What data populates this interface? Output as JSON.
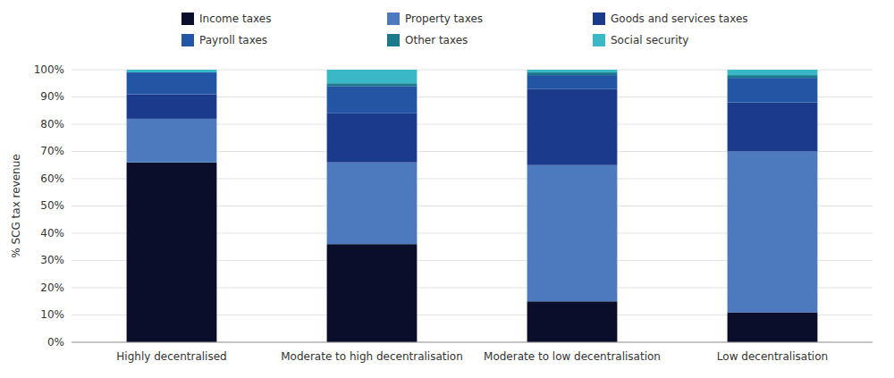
{
  "chart_data": {
    "type": "bar",
    "stacked": true,
    "categories": [
      "Highly decentralised",
      "Moderate to high decentralisation",
      "Moderate to low decentralisation",
      "Low decentralisation"
    ],
    "series": [
      {
        "name": "Income taxes",
        "color": "#0a0e2a",
        "values": [
          66,
          36,
          15,
          11
        ]
      },
      {
        "name": "Property taxes",
        "color": "#4d7abf",
        "values": [
          16,
          30,
          50,
          59
        ]
      },
      {
        "name": "Goods and services taxes",
        "color": "#1a3a8c",
        "values": [
          9,
          18,
          28,
          18
        ]
      },
      {
        "name": "Payroll taxes",
        "color": "#2255a4",
        "values": [
          8,
          10,
          5,
          9
        ]
      },
      {
        "name": "Other taxes",
        "color": "#1a7a8c",
        "values": [
          0,
          1,
          1,
          1
        ]
      },
      {
        "name": "Social security",
        "color": "#3ab8c8",
        "values": [
          1,
          5,
          1,
          2
        ]
      }
    ],
    "ylabel": "% SCG tax revenue",
    "ylim": [
      0,
      100
    ],
    "yticks": [
      {
        "value": 0,
        "label": "0%"
      },
      {
        "value": 10,
        "label": "10%"
      },
      {
        "value": 20,
        "label": "20%"
      },
      {
        "value": 30,
        "label": "30%"
      },
      {
        "value": 40,
        "label": "40%"
      },
      {
        "value": 50,
        "label": "50%"
      },
      {
        "value": 60,
        "label": "60%"
      },
      {
        "value": 70,
        "label": "70%"
      },
      {
        "value": 80,
        "label": "80%"
      },
      {
        "value": 90,
        "label": "90%"
      },
      {
        "value": 100,
        "label": "100%"
      }
    ],
    "grid": true,
    "legend": "top"
  }
}
